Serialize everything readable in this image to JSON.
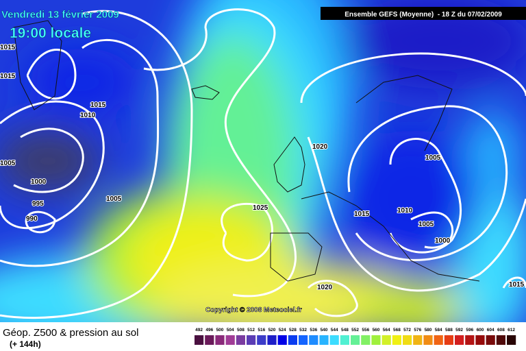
{
  "header": {
    "date": "Vendredi 13 février 2009",
    "time": "19:00 locale",
    "model": "Ensemble GEFS (Moyenne)  - 18 Z du 07/02/2009"
  },
  "isobar_labels": [
    "1015",
    "1015",
    "1015",
    "1010",
    "1005",
    "1000",
    "1005",
    "995",
    "990",
    "1025",
    "1020",
    "1015",
    "1010",
    "1005",
    "1005",
    "1000",
    "1020",
    "1015"
  ],
  "footer": {
    "title": "Géop. Z500 & pression au sol",
    "subtitle": "(+ 144h)",
    "copyright": "Copyright © 2008 Meteociel.fr"
  },
  "scale": {
    "ticks": [
      492,
      496,
      500,
      504,
      508,
      512,
      516,
      520,
      524,
      528,
      532,
      536,
      540,
      544,
      548,
      552,
      556,
      560,
      564,
      568,
      572,
      576,
      580,
      584,
      588,
      592,
      596,
      600,
      604,
      608,
      612
    ],
    "colors": [
      "#4a1040",
      "#6a1a5a",
      "#8a2a7a",
      "#a03c96",
      "#7a3ca0",
      "#5a3cb4",
      "#3c3cc8",
      "#1e1ec8",
      "#0000e6",
      "#0a3cf0",
      "#1464ff",
      "#1e8cff",
      "#28b4ff",
      "#3cdcff",
      "#50f0d2",
      "#64f096",
      "#82f064",
      "#a0f03c",
      "#d2f028",
      "#f0f014",
      "#f0dc14",
      "#f0b414",
      "#f08c14",
      "#f06414",
      "#e63c14",
      "#d21e1e",
      "#b41414",
      "#960a0a",
      "#780a0a",
      "#500a0a",
      "#280505"
    ]
  }
}
